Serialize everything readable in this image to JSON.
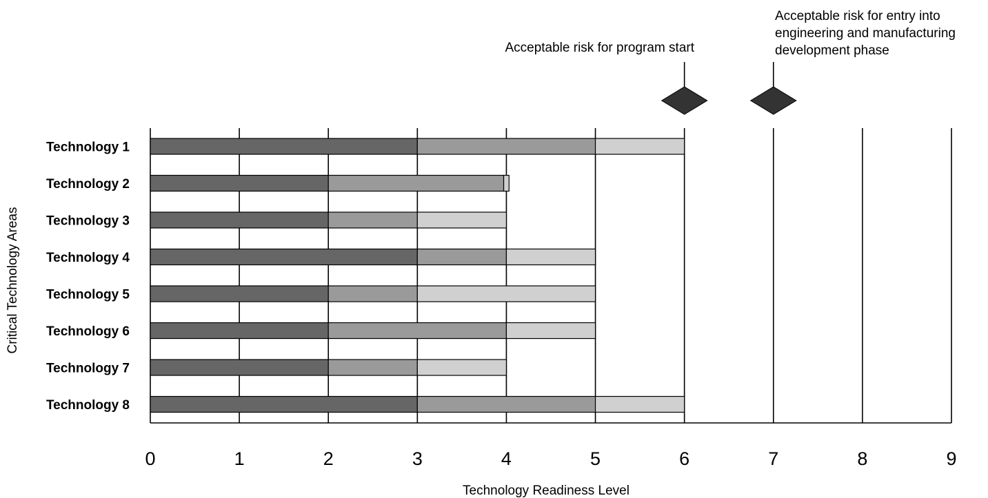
{
  "chart_data": {
    "type": "bar",
    "orientation": "horizontal",
    "stacked": true,
    "xlabel": "Technology Readiness Level",
    "ylabel": "Critical Technology Areas",
    "xlim": [
      0,
      9
    ],
    "xticks": [
      0,
      1,
      2,
      3,
      4,
      5,
      6,
      7,
      8,
      9
    ],
    "grid": true,
    "colors": [
      "#666666",
      "#9a9a9a",
      "#d0d0d0"
    ],
    "categories": [
      "Technology 1",
      "Technology 2",
      "Technology 3",
      "Technology 4",
      "Technology 5",
      "Technology 6",
      "Technology 7",
      "Technology 8"
    ],
    "segments": [
      [
        3,
        5,
        6
      ],
      [
        2,
        3.97,
        4.03
      ],
      [
        2,
        3,
        4
      ],
      [
        3,
        4,
        5
      ],
      [
        2,
        3,
        5
      ],
      [
        2,
        4,
        5
      ],
      [
        2,
        3,
        4
      ],
      [
        3,
        5,
        6
      ]
    ],
    "annotations": [
      {
        "x": 6,
        "lines": [
          "Acceptable risk for program start"
        ]
      },
      {
        "x": 7,
        "lines": [
          "Acceptable risk for entry into",
          "engineering and manufacturing",
          "development phase"
        ]
      }
    ]
  }
}
